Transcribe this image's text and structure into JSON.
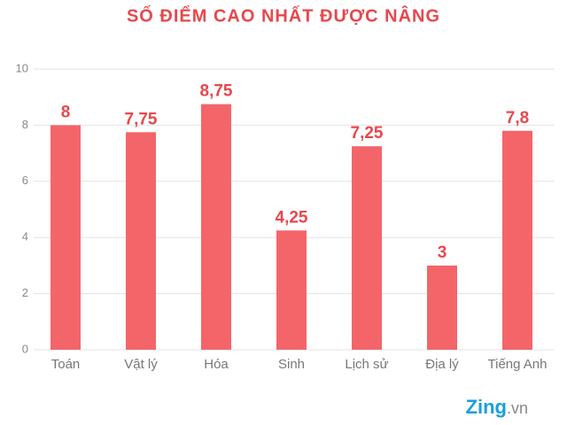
{
  "chart_data": {
    "type": "bar",
    "title": "SỐ ĐIỂM CAO NHẤT ĐƯỢC NÂNG",
    "categories": [
      "Toán",
      "Vật lý",
      "Hóa",
      "Sinh",
      "Lịch sử",
      "Địa lý",
      "Tiếng Anh"
    ],
    "values": [
      8,
      7.75,
      8.75,
      4.25,
      7.25,
      3,
      7.8
    ],
    "value_labels": [
      "8",
      "7,75",
      "8,75",
      "4,25",
      "7,25",
      "3",
      "7,8"
    ],
    "color": "#f4656a",
    "ylim": [
      0,
      10
    ],
    "yticks": [
      0,
      2,
      4,
      6,
      8,
      10
    ],
    "grid": true
  },
  "watermark": {
    "brand": "Zing",
    "domain": ".vn"
  }
}
